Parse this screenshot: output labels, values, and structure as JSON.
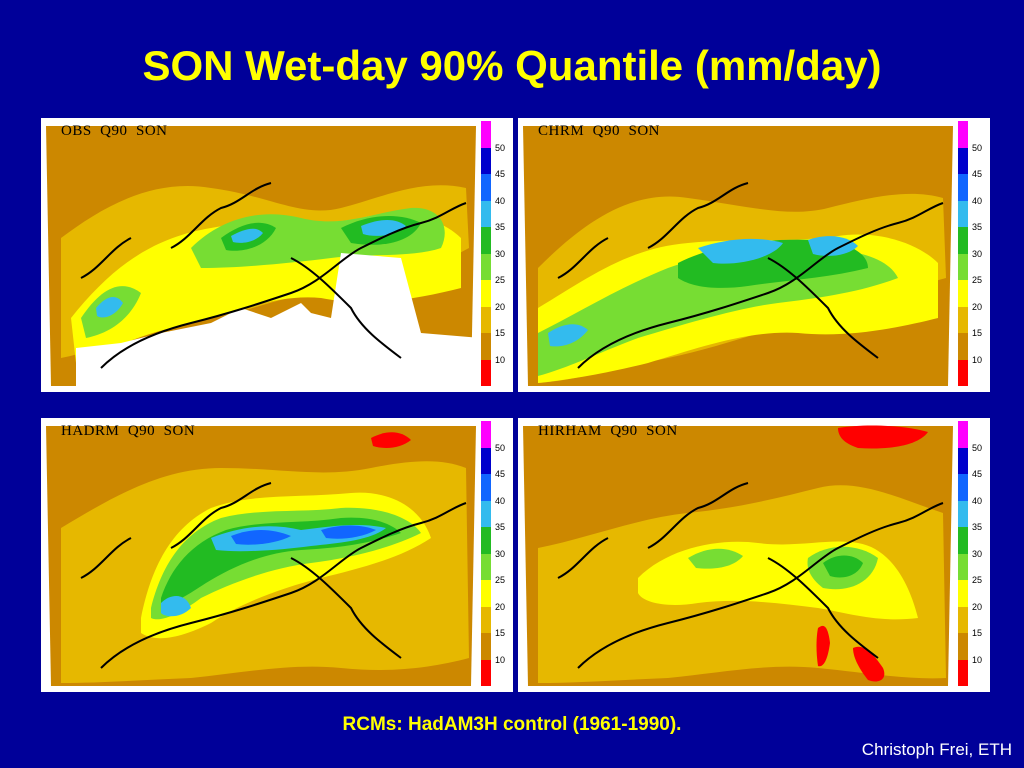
{
  "title": "SON Wet-day 90% Quantile (mm/day)",
  "footer": "RCMs: HadAM3H control (1961-1990).",
  "credit": "Christoph Frei, ETH",
  "colors": {
    "background": "#000099",
    "title": "#ffff00",
    "scale": [
      "#ff0000",
      "#cc8800",
      "#e6b800",
      "#ffff00",
      "#77dd33",
      "#22bb22",
      "#33bbee",
      "#1166ff",
      "#0000cc",
      "#ff00ff"
    ]
  },
  "colorbar": {
    "ticks": [
      "50",
      "45",
      "40",
      "35",
      "30",
      "25",
      "20",
      "15",
      "10"
    ]
  },
  "panels": [
    {
      "label": "OBS  Q90  SON"
    },
    {
      "label": "CHRM  Q90  SON"
    },
    {
      "label": "HADRM  Q90  SON"
    },
    {
      "label": "HIRHAM  Q90  SON"
    }
  ]
}
